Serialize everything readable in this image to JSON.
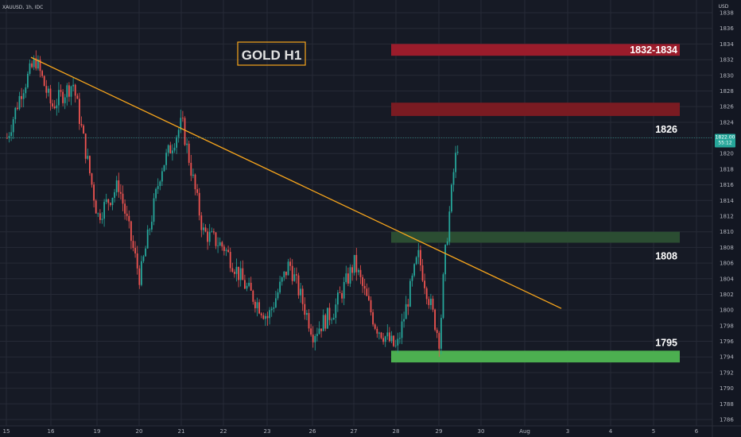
{
  "header": {
    "symbol": "XAUUSD, 1h, IDC",
    "currency": "USD"
  },
  "colors": {
    "background": "#131722",
    "up_candle": "#26a69a",
    "down_candle": "#ef5350",
    "trendline": "#f7a51c",
    "resistance_strong": "#9b1c2b",
    "resistance": "#7a1b22",
    "support_mid": "#2b4d32",
    "support": "#4caf50",
    "current_price_tag": "#26a69a"
  },
  "chart_data": {
    "type": "candlestick",
    "title": "GOLD H1",
    "ylim": [
      1785,
      1838
    ],
    "price_ticks": [
      1786,
      1788,
      1790,
      1792,
      1794,
      1796,
      1798,
      1800,
      1802,
      1804,
      1806,
      1808,
      1810,
      1812,
      1814,
      1816,
      1818,
      1820,
      1822,
      1824,
      1826,
      1828,
      1830,
      1832,
      1834,
      1836,
      1838
    ],
    "time_ticks": [
      "15",
      "16",
      "19",
      "20",
      "21",
      "22",
      "23",
      "26",
      "27",
      "28",
      "29",
      "30",
      "Aug",
      "3",
      "4",
      "5",
      "6"
    ],
    "current_price": {
      "price": 1822.0,
      "label": "1822.00",
      "countdown": "55:12"
    },
    "zones": [
      {
        "name": "resistance-1832",
        "label": "1832-1834",
        "from": 1832.5,
        "to": 1834.0,
        "start_day": "28",
        "kind": "resistance_strong"
      },
      {
        "name": "resistance-1826",
        "label": "1826",
        "from": 1824.8,
        "to": 1826.5,
        "start_day": "28",
        "kind": "resistance"
      },
      {
        "name": "support-1808",
        "label": "1808",
        "from": 1808.6,
        "to": 1810.0,
        "start_day": "28",
        "kind": "support_mid"
      },
      {
        "name": "support-1795",
        "label": "1795",
        "from": 1793.3,
        "to": 1794.8,
        "start_day": "28",
        "kind": "support"
      }
    ],
    "trendline": {
      "start": {
        "day": "15",
        "price": 1832.3
      },
      "end": {
        "day": "3",
        "price": 1800.2
      }
    },
    "price_path": [
      {
        "day": "15",
        "price": 1822
      },
      {
        "day": "15",
        "price": 1828
      },
      {
        "day": "15",
        "price": 1832
      },
      {
        "day": "16",
        "price": 1826
      },
      {
        "day": "16",
        "price": 1829
      },
      {
        "day": "19",
        "price": 1812
      },
      {
        "day": "19",
        "price": 1816
      },
      {
        "day": "20",
        "price": 1804
      },
      {
        "day": "20",
        "price": 1818
      },
      {
        "day": "21",
        "price": 1824
      },
      {
        "day": "21",
        "price": 1810
      },
      {
        "day": "22",
        "price": 1808
      },
      {
        "day": "22",
        "price": 1803
      },
      {
        "day": "23",
        "price": 1799
      },
      {
        "day": "23",
        "price": 1806
      },
      {
        "day": "26",
        "price": 1797
      },
      {
        "day": "26",
        "price": 1800
      },
      {
        "day": "27",
        "price": 1806
      },
      {
        "day": "27",
        "price": 1798
      },
      {
        "day": "28",
        "price": 1795
      },
      {
        "day": "28",
        "price": 1807
      },
      {
        "day": "29",
        "price": 1796
      },
      {
        "day": "29",
        "price": 1806
      },
      {
        "day": "29",
        "price": 1812
      },
      {
        "day": "29",
        "price": 1818
      },
      {
        "day": "29",
        "price": 1822
      }
    ]
  }
}
